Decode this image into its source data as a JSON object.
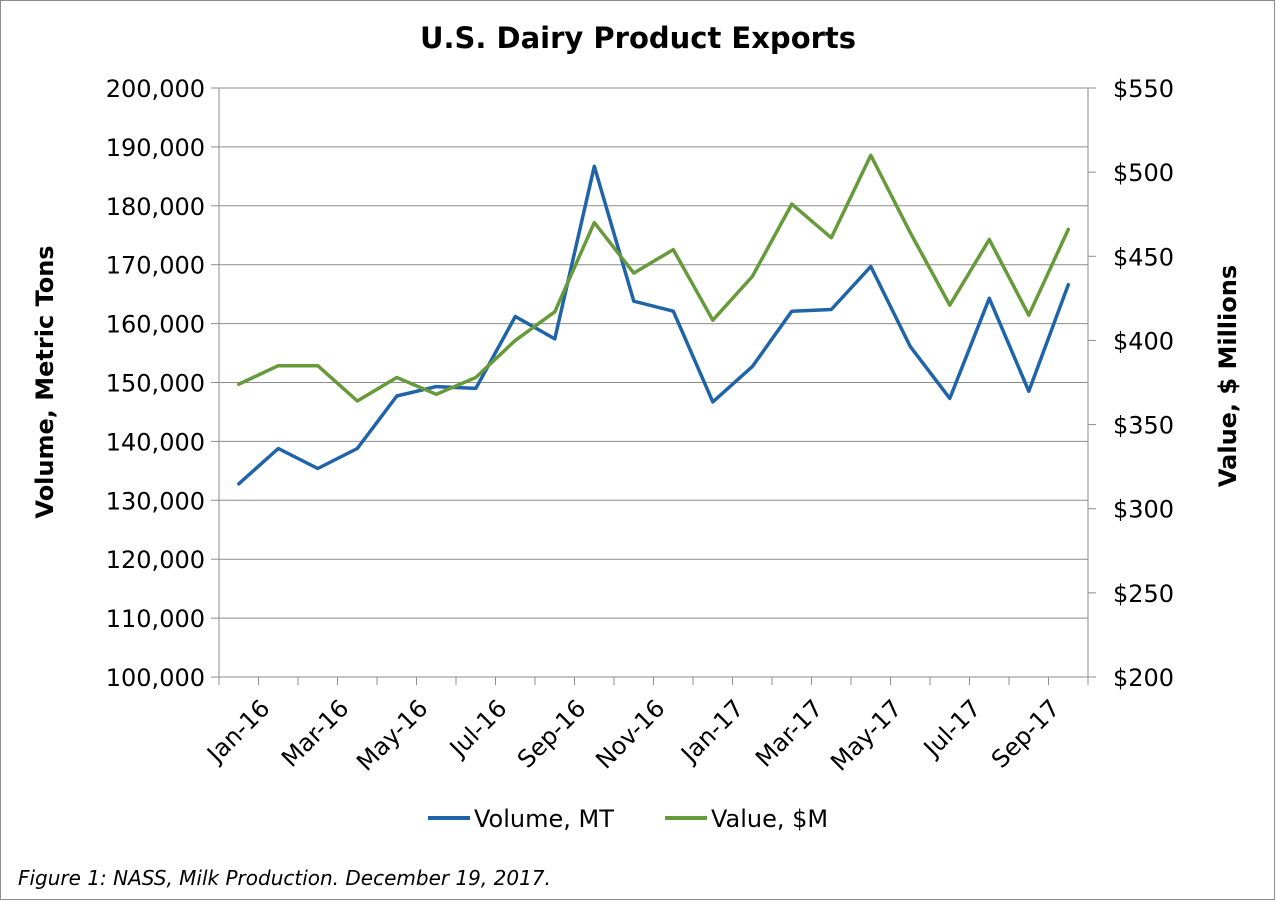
{
  "caption": "Figure 1: NASS, Milk Production. December 19, 2017.",
  "chart_data": {
    "type": "line",
    "title": "U.S. Dairy Product Exports",
    "ylabel": "Volume, Metric Tons",
    "y2label": "Value, $ Millions",
    "ylim": [
      100000,
      200000
    ],
    "y2lim": [
      200,
      550
    ],
    "yticks": [
      "100,000",
      "110,000",
      "120,000",
      "130,000",
      "140,000",
      "150,000",
      "160,000",
      "170,000",
      "180,000",
      "190,000",
      "200,000"
    ],
    "y2ticks": [
      "$200",
      "$250",
      "$300",
      "$350",
      "$400",
      "$450",
      "$500",
      "$550"
    ],
    "categories": [
      "Jan-16",
      "Feb-16",
      "Mar-16",
      "Apr-16",
      "May-16",
      "Jun-16",
      "Jul-16",
      "Aug-16",
      "Sep-16",
      "Oct-16",
      "Nov-16",
      "Dec-16",
      "Jan-17",
      "Feb-17",
      "Mar-17",
      "Apr-17",
      "May-17",
      "Jun-17",
      "Jul-17",
      "Aug-17",
      "Sep-17",
      "Oct-17"
    ],
    "xtick_labels": [
      "Jan-16",
      "Mar-16",
      "May-16",
      "Jul-16",
      "Sep-16",
      "Nov-16",
      "Jan-17",
      "Mar-17",
      "May-17",
      "Jul-17",
      "Sep-17"
    ],
    "grid": true,
    "legend_position": "bottom",
    "series": [
      {
        "name": "Volume, MT",
        "axis": "left",
        "color": "#1f64a8",
        "values": [
          132800,
          138800,
          135400,
          138800,
          147700,
          149300,
          149000,
          161200,
          157400,
          186700,
          163800,
          162100,
          146700,
          152700,
          162100,
          162400,
          169700,
          156100,
          147300,
          164300,
          148500,
          166600
        ]
      },
      {
        "name": "Value, $M",
        "axis": "right",
        "color": "#679a3a",
        "values": [
          374,
          385,
          385,
          364,
          378,
          368,
          378,
          400,
          417,
          470,
          440,
          454,
          412,
          438,
          481,
          461,
          510,
          464,
          421,
          460,
          415,
          466
        ]
      }
    ]
  }
}
